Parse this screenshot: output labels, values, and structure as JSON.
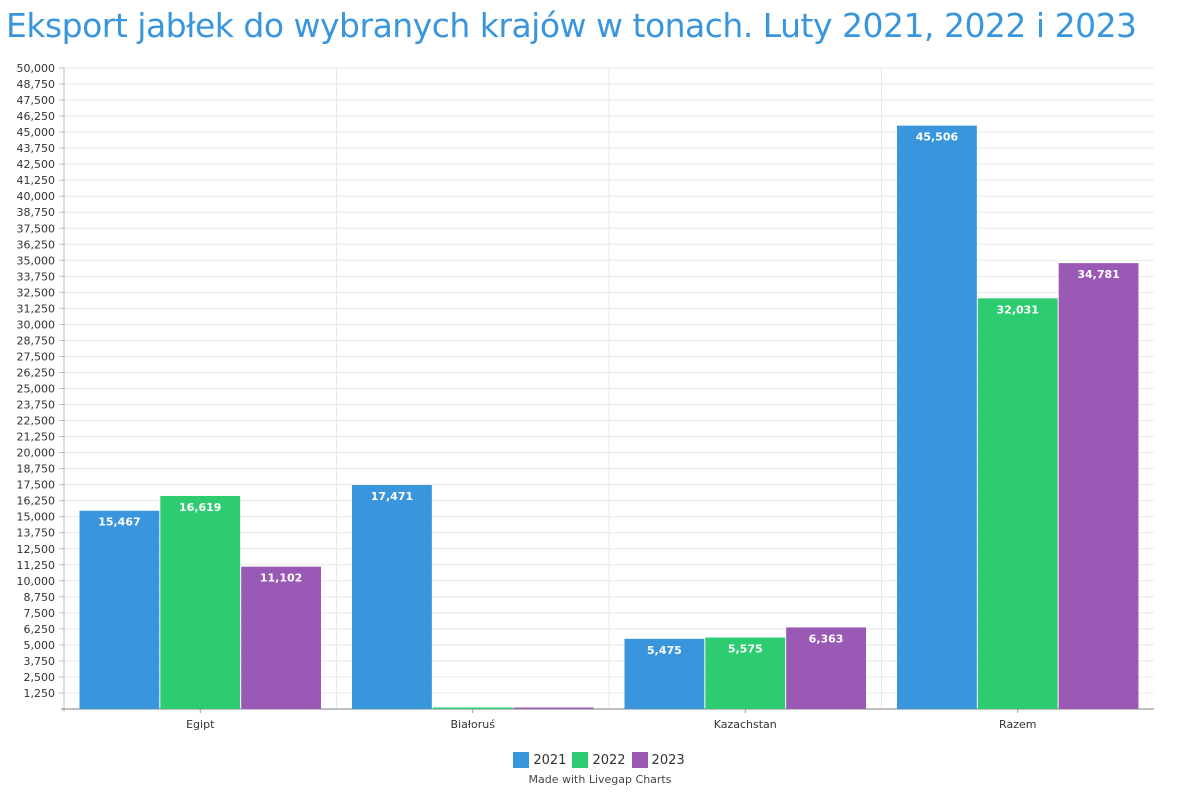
{
  "chart_data": {
    "type": "bar",
    "title": "Eksport jabłek do wybranych krajów w tonach. Luty 2021, 2022 i 2023",
    "categories": [
      "Egipt",
      "Białoruś",
      "Kazachstan",
      "Razem"
    ],
    "series": [
      {
        "name": "2021",
        "color": "#3a96dc",
        "values": [
          15467,
          17471,
          5475,
          45506
        ],
        "labels": [
          "15,467",
          "17,471",
          "5,475",
          "45,506"
        ]
      },
      {
        "name": "2022",
        "color": "#2ecc71",
        "values": [
          16619,
          0,
          5575,
          32031
        ],
        "labels": [
          "16,619",
          "",
          "5,575",
          "32,031"
        ]
      },
      {
        "name": "2023",
        "color": "#9b59b6",
        "values": [
          11102,
          0,
          6363,
          34781
        ],
        "labels": [
          "11,102",
          "",
          "6,363",
          "34,781"
        ]
      }
    ],
    "ylim": [
      0,
      50000
    ],
    "ytick_step": 1250,
    "yticks_labels": [
      "1,250",
      "2,500",
      "3,750",
      "5,000",
      "6,250",
      "7,500",
      "8,750",
      "10,000",
      "11,250",
      "12,500",
      "13,750",
      "15,000",
      "16,250",
      "17,500",
      "18,750",
      "20,000",
      "21,250",
      "22,500",
      "23,750",
      "25,000",
      "26,250",
      "27,500",
      "28,750",
      "30,000",
      "31,250",
      "32,500",
      "33,750",
      "35,000",
      "36,250",
      "37,500",
      "38,750",
      "40,000",
      "41,250",
      "42,500",
      "43,750",
      "45,000",
      "46,250",
      "47,500",
      "48,750",
      "50,000"
    ],
    "grid": true,
    "legend_position": "bottom"
  },
  "credit": "Made with Livegap Charts"
}
